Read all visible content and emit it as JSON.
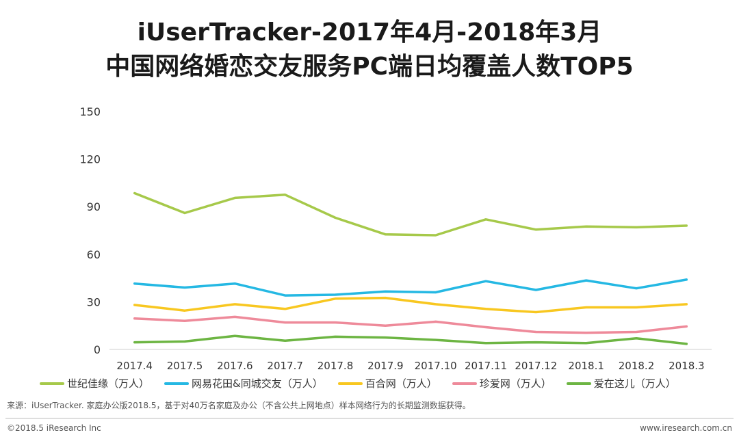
{
  "chart_data": {
    "type": "line",
    "title": "iUserTracker-2017年4月-2018年3月",
    "subtitle": "中国网络婚恋交友服务PC端日均覆盖人数TOP5",
    "xlabel": "",
    "ylabel": "",
    "ylim": [
      0,
      150
    ],
    "yticks": [
      0,
      30,
      60,
      90,
      120,
      150
    ],
    "grid": false,
    "legend_position": "bottom",
    "categories": [
      "2017.4",
      "2017.5",
      "2017.6",
      "2017.7",
      "2017.8",
      "2017.9",
      "2017.10",
      "2017.11",
      "2017.12",
      "2018.1",
      "2018.2",
      "2018.3"
    ],
    "series": [
      {
        "name": "世纪佳缘（万人）",
        "color": "#a6c94a",
        "values": [
          98.5,
          86,
          95.5,
          97.5,
          83,
          72.5,
          72,
          82,
          75.5,
          77.5,
          77,
          78
        ]
      },
      {
        "name": "网易花田&同城交友（万人）",
        "color": "#25b8e3",
        "values": [
          41.5,
          39,
          41.5,
          34,
          34.5,
          36.5,
          36,
          43,
          37.5,
          43.5,
          38.5,
          44
        ]
      },
      {
        "name": "百合网（万人）",
        "color": "#f8c720",
        "values": [
          28,
          24.5,
          28.5,
          25.5,
          32,
          32.5,
          28.5,
          25.5,
          23.5,
          26.5,
          26.5,
          28.5
        ]
      },
      {
        "name": "珍爱网（万人）",
        "color": "#ee8a9a",
        "values": [
          19.5,
          18,
          20.5,
          17,
          17,
          15,
          17.5,
          14,
          11,
          10.5,
          11,
          14.5
        ]
      },
      {
        "name": "爱在这儿（万人）",
        "color": "#6db543",
        "values": [
          4.5,
          5,
          8.5,
          5.5,
          8,
          7.5,
          6,
          4,
          4.5,
          4,
          7,
          3.5
        ]
      }
    ]
  },
  "source_note": "来源：iUserTracker. 家庭办公版2018.5，基于对40万名家庭及办公（不含公共上网地点）样本网络行为的长期监测数据获得。",
  "footer": {
    "copyright": "©2018.5 iResearch Inc",
    "website": "www.iresearch.com.cn"
  }
}
